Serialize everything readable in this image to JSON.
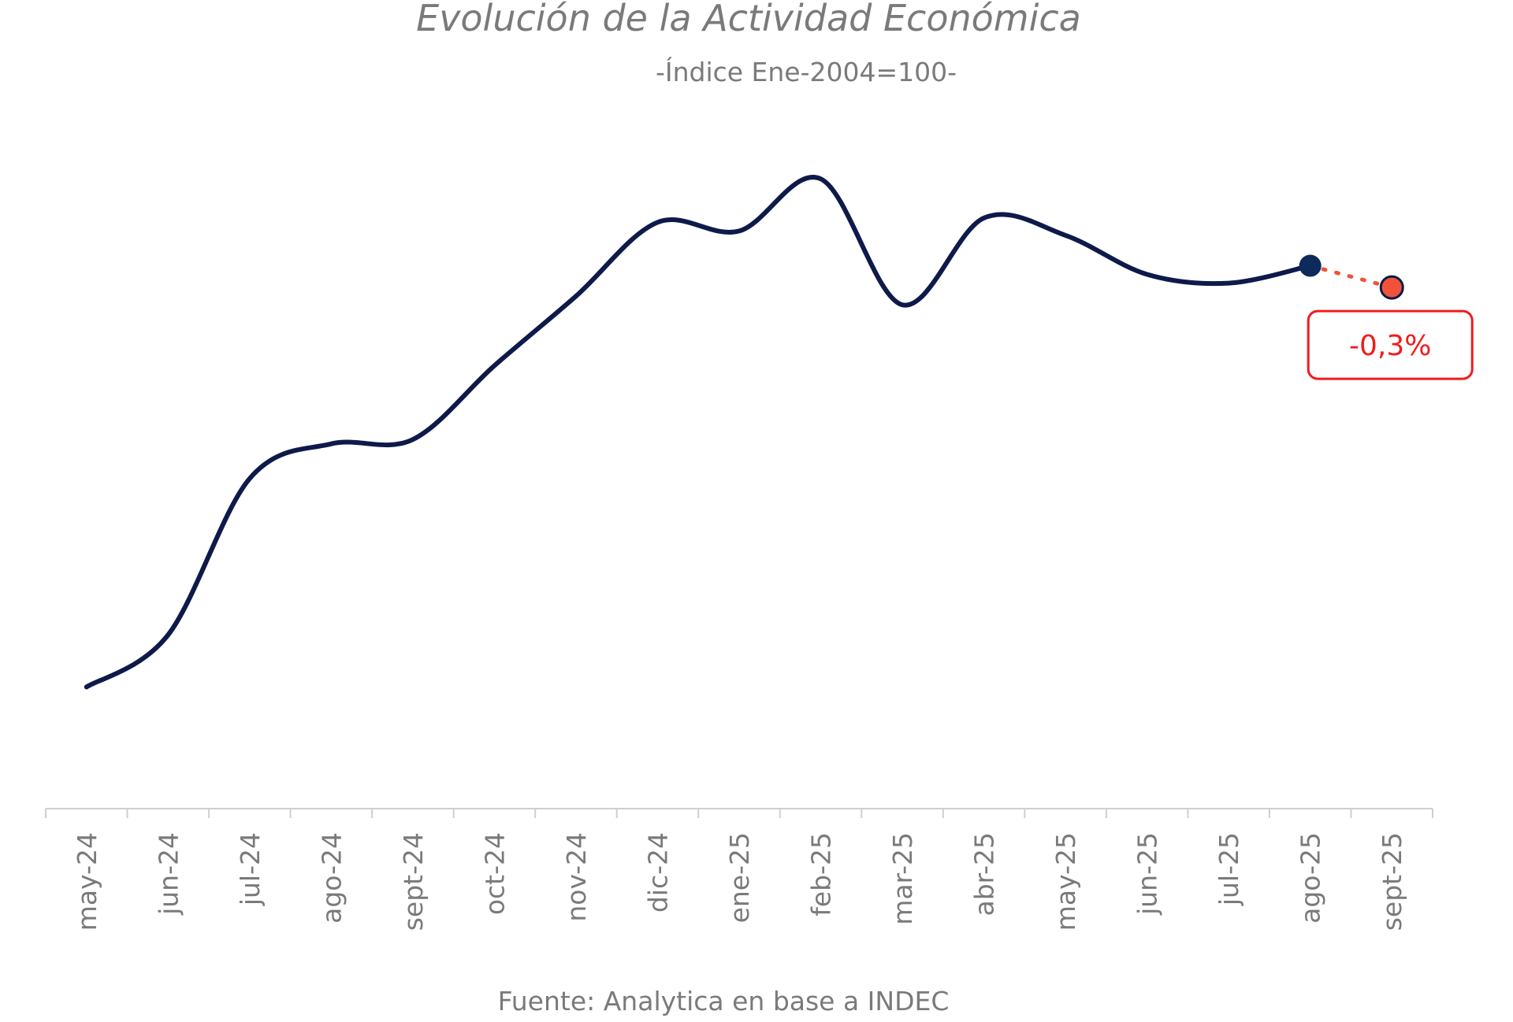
{
  "chart_data": {
    "type": "line",
    "title": "Evolución de la Actividad Económica",
    "subtitle": "-Índice Ene-2004=100-",
    "source": "Fuente: Analytica en base a INDEC",
    "xlabel": "",
    "ylabel": "",
    "categories": [
      "may-24",
      "jun-24",
      "jul-24",
      "ago-24",
      "sept-24",
      "oct-24",
      "nov-24",
      "dic-24",
      "ene-25",
      "feb-25",
      "mar-25",
      "abr-25",
      "may-25",
      "jun-25",
      "jul-25",
      "ago-25",
      "sept-25"
    ],
    "series": [
      {
        "values": [
          141.8,
          143.0,
          146.6,
          147.4,
          147.5,
          149.2,
          150.8,
          152.5,
          152.3,
          153.5,
          150.6,
          152.6,
          152.2,
          151.3,
          151.1,
          151.5,
          null
        ],
        "style": "solid smooth",
        "color": "#0d1a4a"
      },
      {
        "values": [
          null,
          null,
          null,
          null,
          null,
          null,
          null,
          null,
          null,
          null,
          null,
          null,
          null,
          null,
          null,
          151.5,
          151.0
        ],
        "style": "dotted",
        "color": "#f0533a"
      }
    ],
    "annotation": {
      "category": "sept-25",
      "text": "-0,3%",
      "color": "#f01c1c"
    },
    "ylim": [
      139,
      154.7
    ],
    "y_axis_visible": false,
    "grid": false,
    "legend": "none"
  }
}
